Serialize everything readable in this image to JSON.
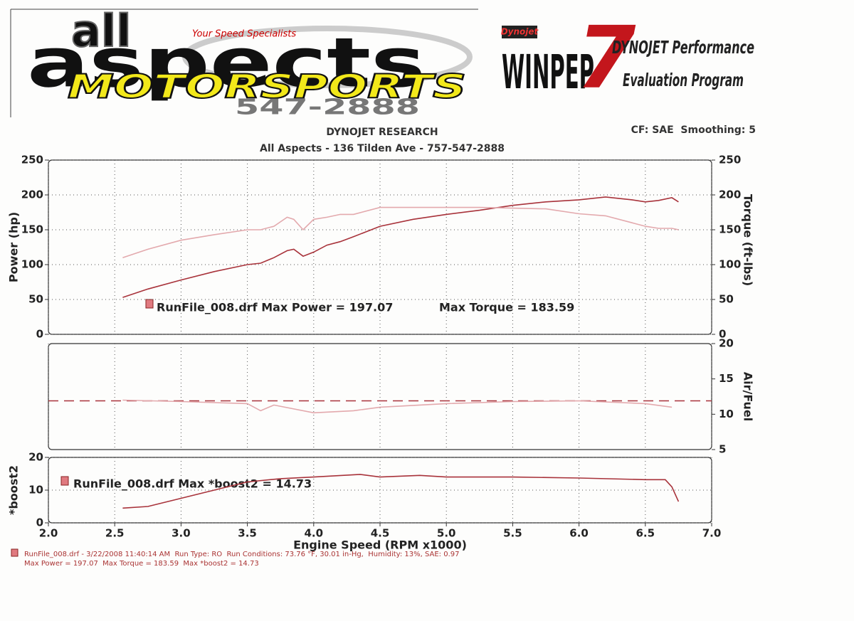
{
  "header": {
    "logo_small": "all",
    "logo_big": "aspects",
    "logo_slogan": "Your Speed Specialists",
    "logo_motorsports": "MOTORSPORTS",
    "logo_phone": "547-2888",
    "winpep_brand": "Dynojet",
    "winpep_name": "WINPEP",
    "winpep_version": "7",
    "winpep_line1": "DYNOJET Performance",
    "winpep_line2": "Evaluation Program",
    "title": "DYNOJET RESEARCH",
    "subtitle": "All Aspects - 136 Tilden Ave - 757-547-2888",
    "settings": "CF: SAE  Smoothing: 5"
  },
  "chart_data": [
    {
      "type": "line",
      "ylabel": "Power (hp)",
      "y2label": "Torque (ft-lbs)",
      "annotation": "RunFile_008.drf Max Power = 197.07",
      "annotation2": "Max Torque = 183.59",
      "xlim": [
        2.0,
        7.0
      ],
      "ylim": [
        0,
        250
      ],
      "yticks": [
        0,
        50,
        100,
        150,
        200,
        250
      ],
      "y2lim": [
        0,
        250
      ],
      "y2ticks": [
        0,
        50,
        100,
        150,
        200,
        250
      ],
      "grid": true,
      "x": [
        2.56,
        2.75,
        3.0,
        3.25,
        3.5,
        3.6,
        3.7,
        3.8,
        3.85,
        3.92,
        4.0,
        4.1,
        4.2,
        4.3,
        4.5,
        4.75,
        5.0,
        5.25,
        5.5,
        5.75,
        6.0,
        6.2,
        6.4,
        6.5,
        6.6,
        6.7,
        6.75
      ],
      "series": [
        {
          "color": "#a8323a",
          "values": [
            53,
            65,
            78,
            90,
            100,
            102,
            110,
            120,
            122,
            112,
            118,
            128,
            133,
            140,
            155,
            165,
            172,
            178,
            185,
            190,
            193,
            197,
            193,
            190,
            192,
            196,
            190
          ]
        },
        {
          "color": "#e3a9ad",
          "axis": "y2",
          "values": [
            110,
            122,
            135,
            143,
            150,
            150,
            155,
            168,
            165,
            150,
            165,
            168,
            172,
            172,
            182,
            182,
            182,
            182,
            181,
            180,
            173,
            170,
            160,
            155,
            152,
            152,
            150
          ]
        }
      ]
    },
    {
      "type": "line",
      "y2label": "Air/Fuel",
      "xlim": [
        2.0,
        7.0
      ],
      "y2lim": [
        5,
        20
      ],
      "y2ticks": [
        5,
        10,
        15,
        20
      ],
      "grid": true,
      "series": [
        {
          "color": "#a8323a",
          "axis": "y2",
          "dashed": true,
          "x": [
            2.0,
            7.0
          ],
          "values": [
            11.9,
            11.9
          ]
        },
        {
          "color": "#e3a9ad",
          "axis": "y2",
          "x": [
            2.56,
            3.0,
            3.5,
            3.6,
            3.7,
            4.0,
            4.3,
            4.5,
            5.0,
            5.5,
            6.0,
            6.5,
            6.7
          ],
          "values": [
            12.0,
            11.8,
            11.5,
            10.5,
            11.3,
            10.2,
            10.5,
            11.0,
            11.5,
            11.8,
            11.9,
            11.5,
            11.0
          ]
        }
      ]
    },
    {
      "type": "line",
      "ylabel": "*boost2",
      "xlabel": "Engine Speed (RPM x1000)",
      "annotation": "RunFile_008.drf Max *boost2 = 14.73",
      "xlim": [
        2.0,
        7.0
      ],
      "ylim": [
        0,
        20
      ],
      "yticks": [
        0,
        10,
        20
      ],
      "grid": true,
      "xticks": [
        {
          "value": 2.0,
          "label": "2.0"
        },
        2.5,
        {
          "value": 3.0,
          "label": "3.0"
        },
        3.5,
        {
          "value": 4.0,
          "label": "4.0"
        },
        4.5,
        {
          "value": 5.0,
          "label": "5.0"
        },
        5.5,
        {
          "value": 6.0,
          "label": "6.0"
        },
        6.5,
        {
          "value": 7.0,
          "label": "7.0"
        }
      ],
      "series": [
        {
          "color": "#a8323a",
          "x": [
            2.56,
            2.75,
            3.0,
            3.25,
            3.5,
            3.75,
            4.0,
            4.35,
            4.5,
            4.8,
            5.0,
            5.5,
            6.0,
            6.5,
            6.65,
            6.7,
            6.75
          ],
          "values": [
            4.5,
            5,
            7.5,
            10,
            12.5,
            13.5,
            14,
            14.8,
            14,
            14.5,
            14,
            14,
            13.7,
            13.2,
            13.2,
            11,
            6.5
          ]
        }
      ]
    }
  ],
  "footer": {
    "line1": "RunFile_008.drf - 3/22/2008 11:40:14 AM  Run Type: RO  Run Conditions: 73.76 °F, 30.01 in-Hg,  Humidity: 13%, SAE: 0.97",
    "line2": "Max Power = 197.07  Max Torque = 183.59  Max *boost2 = 14.73"
  }
}
